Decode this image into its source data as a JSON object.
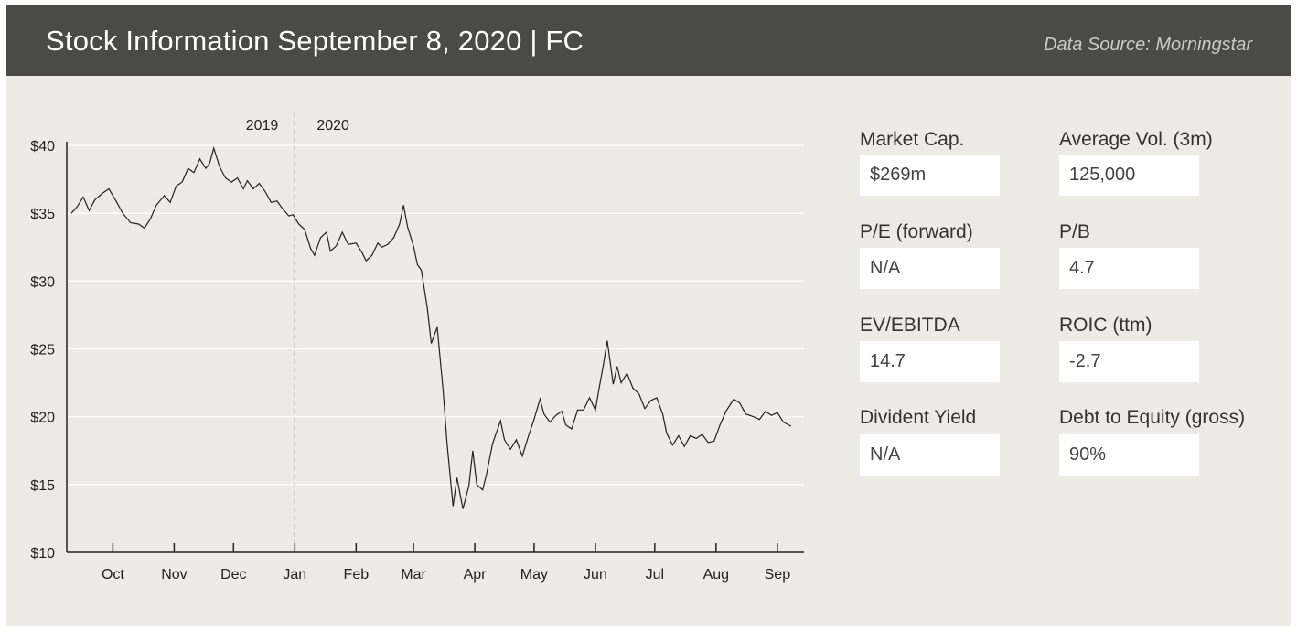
{
  "header": {
    "title": "Stock Information September 8, 2020  |  FC",
    "source": "Data Source: Morningstar"
  },
  "year_labels": {
    "left": "2019",
    "right": "2020"
  },
  "stats": [
    {
      "label": "Market Cap.",
      "value": "$269m"
    },
    {
      "label": "Average Vol. (3m)",
      "value": "125,000"
    },
    {
      "label": "P/E (forward)",
      "value": "N/A"
    },
    {
      "label": "P/B",
      "value": "4.7"
    },
    {
      "label": "EV/EBITDA",
      "value": "14.7"
    },
    {
      "label": "ROIC (ttm)",
      "value": "-2.7"
    },
    {
      "label": "Divident Yield",
      "value": "N/A"
    },
    {
      "label": "Debt to Equity (gross)",
      "value": "90%"
    }
  ],
  "chart_data": {
    "type": "line",
    "title": "",
    "xlabel": "",
    "ylabel": "",
    "ylim": [
      10,
      40
    ],
    "yticks": [
      10,
      15,
      20,
      25,
      30,
      35,
      40
    ],
    "ytick_labels": [
      "$10",
      "$15",
      "$20",
      "$25",
      "$30",
      "$35",
      "$40"
    ],
    "month_ticks": [
      "2019-10-01",
      "2019-11-01",
      "2019-12-01",
      "2020-01-01",
      "2020-02-01",
      "2020-03-01",
      "2020-04-01",
      "2020-05-01",
      "2020-06-01",
      "2020-07-01",
      "2020-08-01",
      "2020-09-01"
    ],
    "month_labels": [
      "Oct",
      "Nov",
      "Dec",
      "Jan",
      "Feb",
      "Mar",
      "Apr",
      "May",
      "Jun",
      "Jul",
      "Aug",
      "Sep"
    ],
    "x_start": "2019-09-10",
    "x_end": "2020-09-08",
    "year_divider": "2020-01-01",
    "grid": true,
    "series": [
      {
        "name": "",
        "color": "#222222",
        "points": [
          [
            "2019-09-10",
            35.0
          ],
          [
            "2019-09-13",
            35.5
          ],
          [
            "2019-09-16",
            36.2
          ],
          [
            "2019-09-19",
            35.2
          ],
          [
            "2019-09-22",
            36.0
          ],
          [
            "2019-09-26",
            36.5
          ],
          [
            "2019-09-29",
            36.8
          ],
          [
            "2019-10-03",
            35.8
          ],
          [
            "2019-10-06",
            35.0
          ],
          [
            "2019-10-10",
            34.3
          ],
          [
            "2019-10-14",
            34.2
          ],
          [
            "2019-10-17",
            33.9
          ],
          [
            "2019-10-20",
            34.6
          ],
          [
            "2019-10-23",
            35.6
          ],
          [
            "2019-10-27",
            36.3
          ],
          [
            "2019-10-30",
            35.8
          ],
          [
            "2019-11-02",
            37.0
          ],
          [
            "2019-11-05",
            37.3
          ],
          [
            "2019-11-08",
            38.3
          ],
          [
            "2019-11-11",
            38.0
          ],
          [
            "2019-11-14",
            39.0
          ],
          [
            "2019-11-17",
            38.3
          ],
          [
            "2019-11-19",
            38.7
          ],
          [
            "2019-11-21",
            39.8
          ],
          [
            "2019-11-24",
            38.4
          ],
          [
            "2019-11-27",
            37.6
          ],
          [
            "2019-11-30",
            37.3
          ],
          [
            "2019-12-03",
            37.6
          ],
          [
            "2019-12-06",
            36.8
          ],
          [
            "2019-12-08",
            37.4
          ],
          [
            "2019-12-11",
            36.8
          ],
          [
            "2019-12-14",
            37.2
          ],
          [
            "2019-12-17",
            36.6
          ],
          [
            "2019-12-20",
            35.8
          ],
          [
            "2019-12-23",
            35.9
          ],
          [
            "2019-12-26",
            35.3
          ],
          [
            "2019-12-29",
            34.8
          ],
          [
            "2019-12-31",
            34.9
          ],
          [
            "2020-01-03",
            34.2
          ],
          [
            "2020-01-06",
            33.8
          ],
          [
            "2020-01-09",
            32.4
          ],
          [
            "2020-01-11",
            31.9
          ],
          [
            "2020-01-14",
            33.2
          ],
          [
            "2020-01-17",
            33.6
          ],
          [
            "2020-01-19",
            32.2
          ],
          [
            "2020-01-22",
            32.6
          ],
          [
            "2020-01-25",
            33.6
          ],
          [
            "2020-01-28",
            32.7
          ],
          [
            "2020-02-01",
            32.8
          ],
          [
            "2020-02-04",
            32.1
          ],
          [
            "2020-02-06",
            31.5
          ],
          [
            "2020-02-09",
            31.9
          ],
          [
            "2020-02-12",
            32.8
          ],
          [
            "2020-02-14",
            32.5
          ],
          [
            "2020-02-17",
            32.7
          ],
          [
            "2020-02-20",
            33.2
          ],
          [
            "2020-02-23",
            34.2
          ],
          [
            "2020-02-25",
            35.6
          ],
          [
            "2020-02-27",
            34.0
          ],
          [
            "2020-03-01",
            32.6
          ],
          [
            "2020-03-03",
            31.2
          ],
          [
            "2020-03-05",
            30.8
          ],
          [
            "2020-03-08",
            28.0
          ],
          [
            "2020-03-10",
            25.4
          ],
          [
            "2020-03-13",
            26.6
          ],
          [
            "2020-03-16",
            21.9
          ],
          [
            "2020-03-18",
            18.0
          ],
          [
            "2020-03-21",
            13.4
          ],
          [
            "2020-03-23",
            15.5
          ],
          [
            "2020-03-26",
            13.2
          ],
          [
            "2020-03-29",
            14.9
          ],
          [
            "2020-03-31",
            17.5
          ],
          [
            "2020-04-02",
            15.0
          ],
          [
            "2020-04-05",
            14.6
          ],
          [
            "2020-04-07",
            15.8
          ],
          [
            "2020-04-10",
            18.0
          ],
          [
            "2020-04-14",
            19.7
          ],
          [
            "2020-04-16",
            18.3
          ],
          [
            "2020-04-19",
            17.6
          ],
          [
            "2020-04-22",
            18.3
          ],
          [
            "2020-04-25",
            17.1
          ],
          [
            "2020-04-28",
            18.5
          ],
          [
            "2020-05-01",
            19.8
          ],
          [
            "2020-05-04",
            21.3
          ],
          [
            "2020-05-06",
            20.2
          ],
          [
            "2020-05-09",
            19.6
          ],
          [
            "2020-05-12",
            20.1
          ],
          [
            "2020-05-15",
            20.4
          ],
          [
            "2020-05-17",
            19.4
          ],
          [
            "2020-05-20",
            19.1
          ],
          [
            "2020-05-23",
            20.5
          ],
          [
            "2020-05-26",
            20.5
          ],
          [
            "2020-05-29",
            21.4
          ],
          [
            "2020-06-01",
            20.5
          ],
          [
            "2020-06-03",
            22.2
          ],
          [
            "2020-06-05",
            23.8
          ],
          [
            "2020-06-07",
            25.6
          ],
          [
            "2020-06-10",
            22.4
          ],
          [
            "2020-06-12",
            23.7
          ],
          [
            "2020-06-14",
            22.5
          ],
          [
            "2020-06-17",
            23.2
          ],
          [
            "2020-06-20",
            22.1
          ],
          [
            "2020-06-23",
            21.7
          ],
          [
            "2020-06-26",
            20.6
          ],
          [
            "2020-06-29",
            21.2
          ],
          [
            "2020-07-02",
            21.4
          ],
          [
            "2020-07-05",
            20.2
          ],
          [
            "2020-07-07",
            18.8
          ],
          [
            "2020-07-10",
            17.9
          ],
          [
            "2020-07-13",
            18.6
          ],
          [
            "2020-07-16",
            17.8
          ],
          [
            "2020-07-19",
            18.6
          ],
          [
            "2020-07-22",
            18.4
          ],
          [
            "2020-07-25",
            18.7
          ],
          [
            "2020-07-28",
            18.1
          ],
          [
            "2020-07-31",
            18.2
          ],
          [
            "2020-08-03",
            19.4
          ],
          [
            "2020-08-06",
            20.4
          ],
          [
            "2020-08-10",
            21.3
          ],
          [
            "2020-08-13",
            21.0
          ],
          [
            "2020-08-16",
            20.2
          ],
          [
            "2020-08-20",
            20.0
          ],
          [
            "2020-08-23",
            19.8
          ],
          [
            "2020-08-26",
            20.4
          ],
          [
            "2020-08-29",
            20.1
          ],
          [
            "2020-09-01",
            20.3
          ],
          [
            "2020-09-04",
            19.6
          ],
          [
            "2020-09-08",
            19.3
          ]
        ]
      }
    ]
  }
}
